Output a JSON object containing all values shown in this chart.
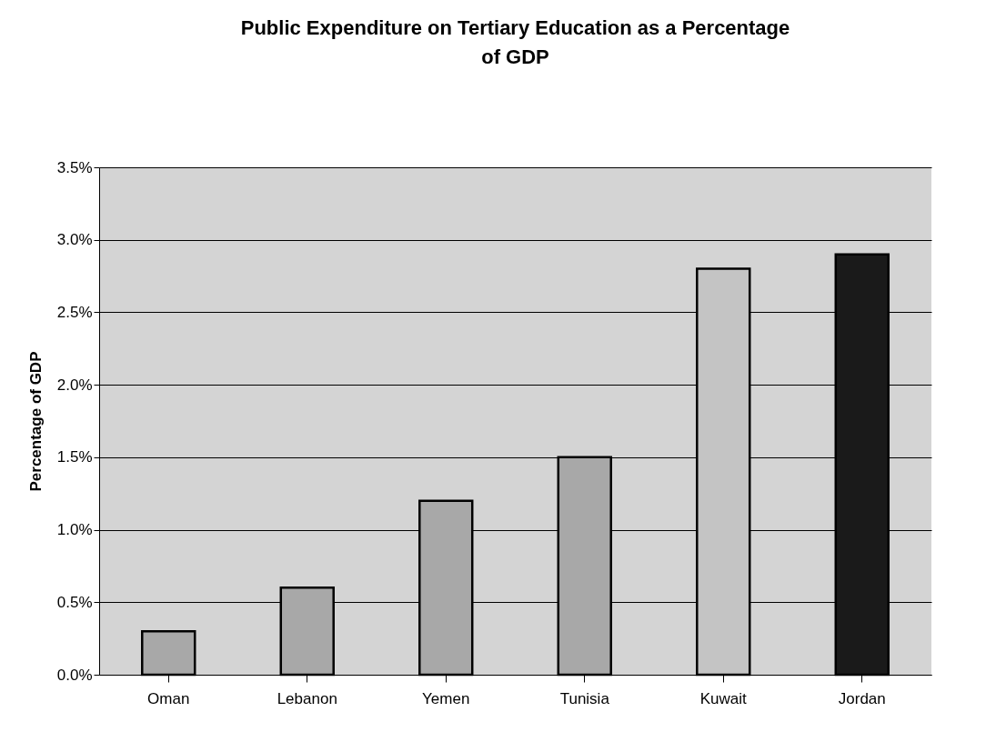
{
  "chart_data": {
    "type": "bar",
    "title": "Public Expenditure on Tertiary Education as a Percentage of GDP",
    "ylabel": "Percentage of GDP",
    "categories": [
      "Oman",
      "Lebanon",
      "Yemen",
      "Tunisia",
      "Kuwait",
      "Jordan"
    ],
    "values": [
      0.3,
      0.6,
      1.2,
      1.5,
      2.8,
      2.9
    ],
    "colors": [
      "#a8a8a8",
      "#a8a8a8",
      "#a8a8a8",
      "#a8a8a8",
      "#c4c4c4",
      "#1a1a1a"
    ],
    "ylim": [
      0,
      3.5
    ],
    "yticks": [
      {
        "value": 0,
        "label": "0.0%"
      },
      {
        "value": 0.5,
        "label": "0.5%"
      },
      {
        "value": 1,
        "label": "1.0%"
      },
      {
        "value": 1.5,
        "label": "1.5%"
      },
      {
        "value": 2,
        "label": "2.0%"
      },
      {
        "value": 2.5,
        "label": "2.5%"
      },
      {
        "value": 3,
        "label": "3.0%"
      },
      {
        "value": 3.5,
        "label": "3.5%"
      }
    ],
    "grid": "y"
  }
}
